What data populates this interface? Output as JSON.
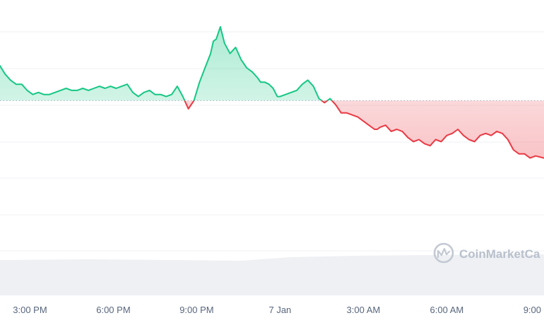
{
  "chart_data": {
    "type": "area",
    "title": "",
    "xlabel": "",
    "ylabel": "",
    "x_ticks": [
      "3:00 PM",
      "6:00 PM",
      "9:00 PM",
      "7 Jan",
      "3:00 AM",
      "6:00 AM",
      "9:00"
    ],
    "x_tick_times": [
      3,
      6,
      9,
      12,
      15,
      18,
      21
    ],
    "x_range": [
      1.92,
      21.5
    ],
    "y_range": [
      0,
      100
    ],
    "gridlines": true,
    "baseline": 64.0,
    "series": [
      {
        "x": [
          1.92,
          2.1,
          2.3,
          2.5,
          2.7,
          2.9,
          3.1,
          3.3,
          3.5,
          3.7,
          3.9,
          4.1,
          4.3,
          4.5,
          4.7,
          4.9,
          5.1,
          5.3,
          5.5,
          5.7,
          5.9,
          6.1,
          6.3,
          6.5,
          6.7,
          6.9,
          7.1,
          7.3,
          7.5,
          7.7,
          7.9,
          8.1,
          8.3,
          8.5,
          8.7,
          8.9,
          9.1,
          9.3,
          9.5,
          9.6,
          9.7,
          9.85,
          10.0,
          10.2,
          10.4,
          10.6,
          10.8,
          11.0,
          11.2,
          11.3,
          11.45,
          11.6,
          11.75,
          11.9,
          12.0,
          12.2,
          12.4,
          12.6,
          12.8,
          13.0,
          13.2,
          13.4,
          13.6,
          13.8,
          14.0,
          14.2,
          14.4,
          14.6,
          14.8,
          15.0,
          15.2,
          15.4,
          15.5,
          15.6,
          15.8,
          16.0,
          16.2,
          16.4,
          16.6,
          16.8,
          17.0,
          17.2,
          17.4,
          17.6,
          17.8,
          18.0,
          18.2,
          18.4,
          18.6,
          18.8,
          19.0,
          19.2,
          19.4,
          19.6,
          19.8,
          20.0,
          20.2,
          20.4,
          20.6,
          20.8,
          21.0,
          21.2,
          21.5
        ],
        "values": [
          81,
          77,
          74,
          72,
          72,
          69,
          67,
          68,
          67,
          67,
          68,
          69,
          70,
          69,
          69,
          70,
          69,
          70,
          71,
          70,
          71,
          70,
          71,
          72,
          68,
          66,
          68,
          69,
          67,
          67,
          66,
          67,
          71,
          66,
          60,
          64,
          73,
          80,
          87,
          93,
          94,
          100,
          92,
          87,
          90,
          84,
          80,
          78,
          75,
          73,
          73,
          72,
          70,
          66,
          66,
          67,
          68,
          69,
          72,
          74,
          71,
          65,
          63,
          65,
          62,
          58,
          58,
          57,
          56,
          54,
          52,
          50,
          50,
          51,
          52,
          49,
          50,
          49,
          46,
          44,
          45,
          43,
          42,
          45,
          44,
          47,
          48,
          50,
          47,
          45,
          44,
          47,
          48,
          47,
          49,
          48,
          45,
          40,
          38,
          38,
          36,
          37,
          36
        ]
      }
    ],
    "colors": {
      "up_line": "#16c784",
      "down_line": "#ea3943",
      "up_fill": "#16c784",
      "down_fill": "#ea3943",
      "grid": "#eff2f5",
      "baseline": "#a6b0c3",
      "volume": "#eef0f3"
    }
  },
  "watermark": {
    "text": "CoinMarketCa",
    "icon": "coinmarketcap-logo"
  }
}
